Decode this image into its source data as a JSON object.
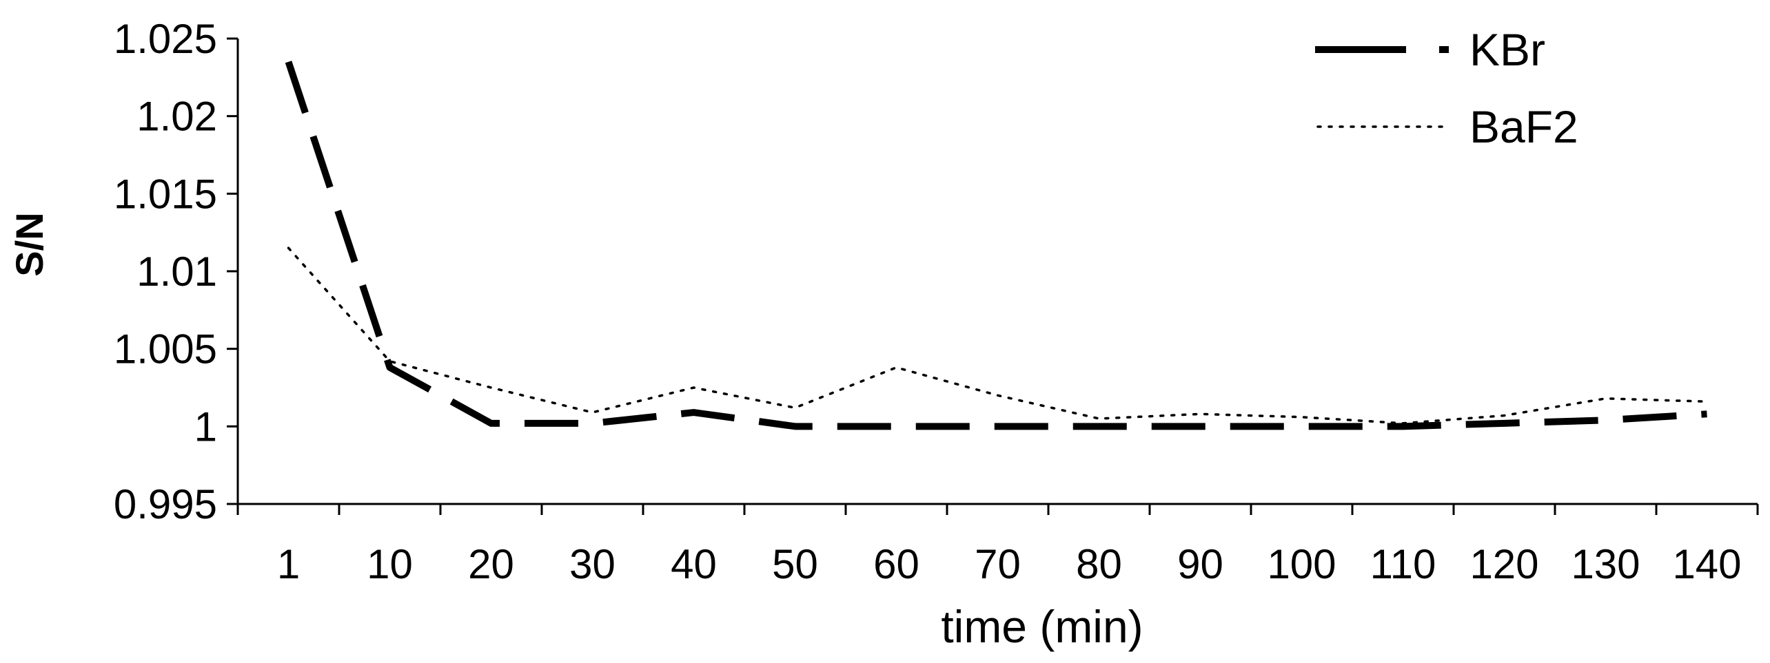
{
  "chart_data": {
    "type": "line",
    "title": "",
    "xlabel": "time (min)",
    "ylabel": "S/N",
    "categories": [
      "1",
      "10",
      "20",
      "30",
      "40",
      "50",
      "60",
      "70",
      "80",
      "90",
      "100",
      "110",
      "120",
      "130",
      "140"
    ],
    "ylim": [
      0.995,
      1.025
    ],
    "yticks": [
      "0.995",
      "1",
      "1.005",
      "1.01",
      "1.015",
      "1.02",
      "1.025"
    ],
    "grid": false,
    "legend_position": "top-right",
    "series": [
      {
        "name": "KBr",
        "color": "#000000",
        "style": "long-dash",
        "values": [
          1.0235,
          1.0038,
          1.0002,
          1.0002,
          1.0009,
          1.0,
          1.0,
          1.0,
          1.0,
          1.0,
          1.0,
          1.0,
          1.0002,
          1.0004,
          1.0008
        ]
      },
      {
        "name": "BaF2",
        "color": "#000000",
        "style": "dotted",
        "values": [
          1.0115,
          1.0042,
          1.0025,
          1.0009,
          1.0025,
          1.0012,
          1.0038,
          1.002,
          1.0005,
          1.0008,
          1.0006,
          1.0002,
          1.0007,
          1.0018,
          1.0016
        ]
      }
    ]
  }
}
